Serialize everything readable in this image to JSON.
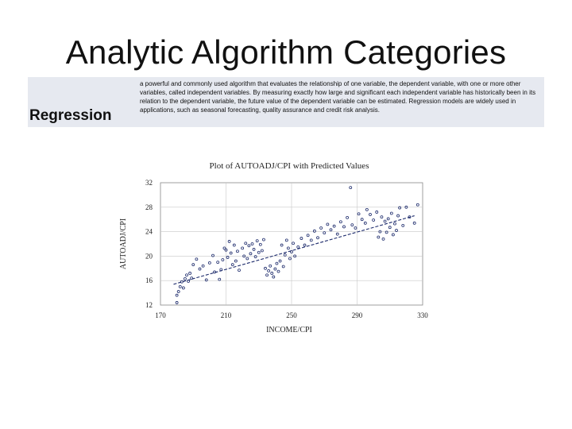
{
  "slide": {
    "title": "Analytic Algorithm Categories"
  },
  "section": {
    "label": "Regression",
    "description": "a powerful and commonly used algorithm that evaluates the relationship of one variable, the dependent variable, with one or more other variables, called independent variables. By measuring exactly how large and significant each independent variable has historically been in its relation to the dependent variable, the future value of the dependent variable can be estimated. Regression models are widely used in applications, such as seasonal forecasting, quality assurance and credit risk analysis."
  },
  "colors": {
    "band": "#e6e9f0",
    "points": "#1c2a6b",
    "fit_line": "#1c2a6b",
    "grid": "#c8c8c8"
  },
  "chart_data": {
    "type": "scatter",
    "title": "Plot of AUTOADJ/CPI with Predicted Values",
    "xlabel": "INCOME/CPI",
    "ylabel": "AUTOADJ/CPI",
    "xlim": [
      170,
      330
    ],
    "ylim": [
      12,
      32
    ],
    "xticks": [
      "170",
      "210",
      "250",
      "290",
      "330"
    ],
    "yticks": [
      "32",
      "28",
      "24",
      "20",
      "16",
      "12"
    ],
    "grid": true,
    "fit_line": {
      "style": "dashed",
      "x": [
        178,
        325
      ],
      "y": [
        15.4,
        26.6
      ]
    },
    "series": [
      {
        "points": [
          [
            180,
            12.4
          ],
          [
            181,
            14.2
          ],
          [
            182,
            15.0
          ],
          [
            180,
            13.6
          ],
          [
            183,
            15.8
          ],
          [
            185,
            16.3
          ],
          [
            184,
            14.8
          ],
          [
            186,
            16.9
          ],
          [
            188,
            17.2
          ],
          [
            187,
            15.9
          ],
          [
            190,
            18.6
          ],
          [
            189,
            16.4
          ],
          [
            192,
            19.5
          ],
          [
            194,
            17.9
          ],
          [
            196,
            18.4
          ],
          [
            198,
            16.1
          ],
          [
            200,
            18.9
          ],
          [
            202,
            20.1
          ],
          [
            203,
            17.4
          ],
          [
            205,
            19.0
          ],
          [
            206,
            16.2
          ],
          [
            207,
            17.8
          ],
          [
            208,
            19.4
          ],
          [
            209,
            21.3
          ],
          [
            210,
            21.0
          ],
          [
            211,
            19.8
          ],
          [
            212,
            22.4
          ],
          [
            213,
            20.5
          ],
          [
            214,
            18.6
          ],
          [
            215,
            21.8
          ],
          [
            216,
            19.2
          ],
          [
            217,
            20.8
          ],
          [
            218,
            17.7
          ],
          [
            220,
            21.3
          ],
          [
            221,
            20.0
          ],
          [
            222,
            22.1
          ],
          [
            223,
            19.6
          ],
          [
            224,
            21.7
          ],
          [
            225,
            20.4
          ],
          [
            226,
            22.0
          ],
          [
            227,
            21.1
          ],
          [
            228,
            19.9
          ],
          [
            229,
            22.5
          ],
          [
            230,
            20.6
          ],
          [
            231,
            21.9
          ],
          [
            232,
            20.9
          ],
          [
            233,
            22.7
          ],
          [
            234,
            18.0
          ],
          [
            235,
            16.9
          ],
          [
            236,
            17.6
          ],
          [
            237,
            18.4
          ],
          [
            238,
            17.2
          ],
          [
            239,
            16.6
          ],
          [
            240,
            17.9
          ],
          [
            241,
            18.8
          ],
          [
            242,
            17.5
          ],
          [
            243,
            19.2
          ],
          [
            244,
            21.8
          ],
          [
            245,
            18.3
          ],
          [
            246,
            20.2
          ],
          [
            247,
            22.6
          ],
          [
            248,
            21.3
          ],
          [
            249,
            19.6
          ],
          [
            250,
            20.7
          ],
          [
            251,
            22.1
          ],
          [
            252,
            20.0
          ],
          [
            254,
            21.5
          ],
          [
            256,
            22.9
          ],
          [
            258,
            21.8
          ],
          [
            260,
            23.4
          ],
          [
            262,
            22.6
          ],
          [
            264,
            24.1
          ],
          [
            266,
            23.0
          ],
          [
            268,
            24.6
          ],
          [
            270,
            23.8
          ],
          [
            272,
            25.2
          ],
          [
            274,
            24.3
          ],
          [
            276,
            24.9
          ],
          [
            278,
            23.6
          ],
          [
            280,
            25.6
          ],
          [
            282,
            24.8
          ],
          [
            284,
            26.3
          ],
          [
            286,
            31.2
          ],
          [
            287,
            25.1
          ],
          [
            289,
            24.6
          ],
          [
            291,
            26.9
          ],
          [
            293,
            26.0
          ],
          [
            295,
            25.4
          ],
          [
            296,
            27.6
          ],
          [
            298,
            26.8
          ],
          [
            300,
            25.9
          ],
          [
            302,
            27.2
          ],
          [
            303,
            23.1
          ],
          [
            304,
            24.0
          ],
          [
            305,
            26.4
          ],
          [
            306,
            22.8
          ],
          [
            307,
            25.7
          ],
          [
            308,
            23.9
          ],
          [
            309,
            26.1
          ],
          [
            310,
            24.7
          ],
          [
            311,
            27.0
          ],
          [
            312,
            23.5
          ],
          [
            313,
            25.3
          ],
          [
            314,
            24.2
          ],
          [
            315,
            26.6
          ],
          [
            316,
            27.9
          ],
          [
            318,
            25.0
          ],
          [
            320,
            28.0
          ],
          [
            322,
            26.4
          ],
          [
            325,
            25.4
          ],
          [
            327,
            28.4
          ]
        ]
      }
    ]
  }
}
